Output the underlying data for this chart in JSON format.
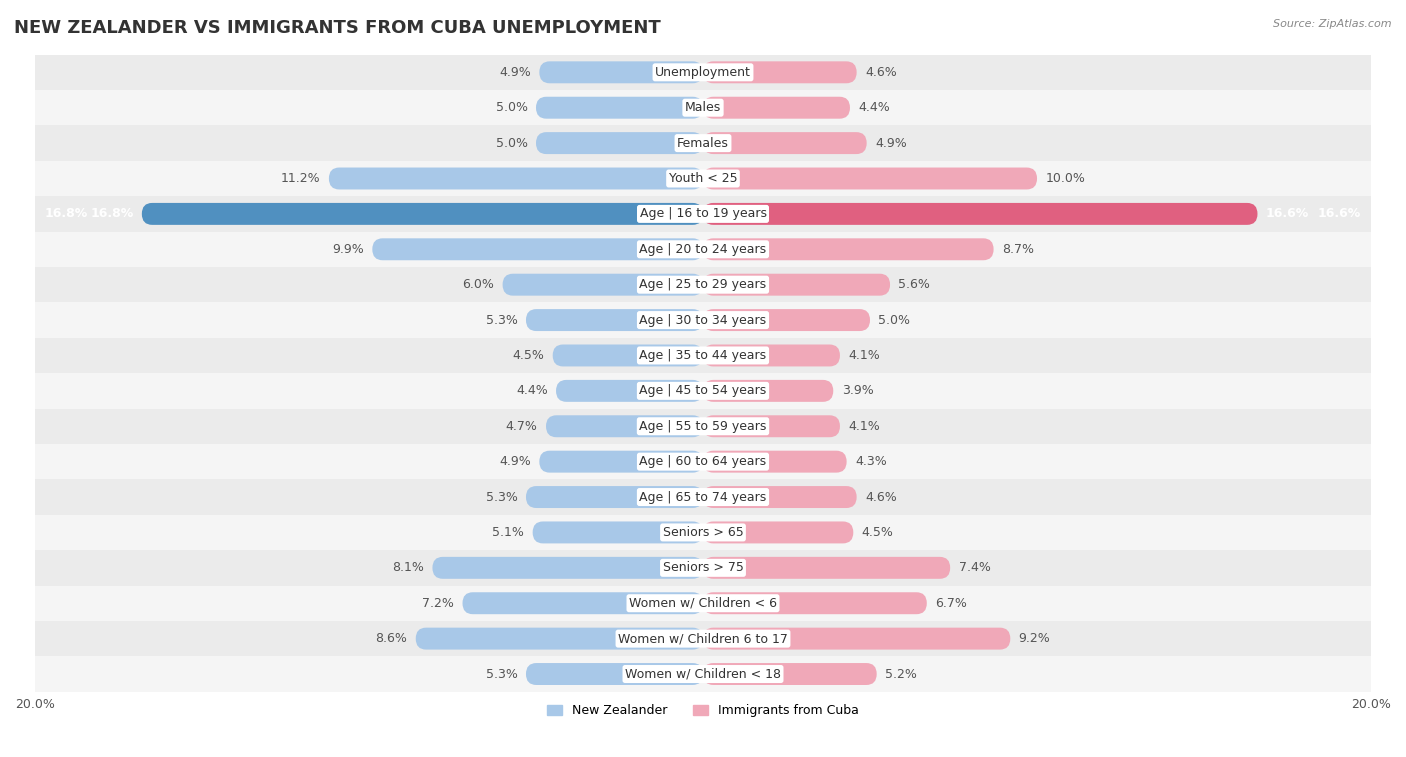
{
  "title": "NEW ZEALANDER VS IMMIGRANTS FROM CUBA UNEMPLOYMENT",
  "source": "Source: ZipAtlas.com",
  "categories": [
    "Unemployment",
    "Males",
    "Females",
    "Youth < 25",
    "Age | 16 to 19 years",
    "Age | 20 to 24 years",
    "Age | 25 to 29 years",
    "Age | 30 to 34 years",
    "Age | 35 to 44 years",
    "Age | 45 to 54 years",
    "Age | 55 to 59 years",
    "Age | 60 to 64 years",
    "Age | 65 to 74 years",
    "Seniors > 65",
    "Seniors > 75",
    "Women w/ Children < 6",
    "Women w/ Children 6 to 17",
    "Women w/ Children < 18"
  ],
  "new_zealander": [
    4.9,
    5.0,
    5.0,
    11.2,
    16.8,
    9.9,
    6.0,
    5.3,
    4.5,
    4.4,
    4.7,
    4.9,
    5.3,
    5.1,
    8.1,
    7.2,
    8.6,
    5.3
  ],
  "immigrants_cuba": [
    4.6,
    4.4,
    4.9,
    10.0,
    16.6,
    8.7,
    5.6,
    5.0,
    4.1,
    3.9,
    4.1,
    4.3,
    4.6,
    4.5,
    7.4,
    6.7,
    9.2,
    5.2
  ],
  "nz_color": "#a8c8e8",
  "cuba_color": "#f0a8b8",
  "nz_highlight_color": "#5090c0",
  "cuba_highlight_color": "#e06080",
  "highlight_row": 4,
  "bg_color": "#ffffff",
  "axis_max": 20.0,
  "bar_height": 0.62,
  "title_fontsize": 13,
  "label_fontsize": 9,
  "category_fontsize": 9,
  "legend_labels": [
    "New Zealander",
    "Immigrants from Cuba"
  ],
  "row_colors": [
    "#ebebeb",
    "#f5f5f5"
  ]
}
